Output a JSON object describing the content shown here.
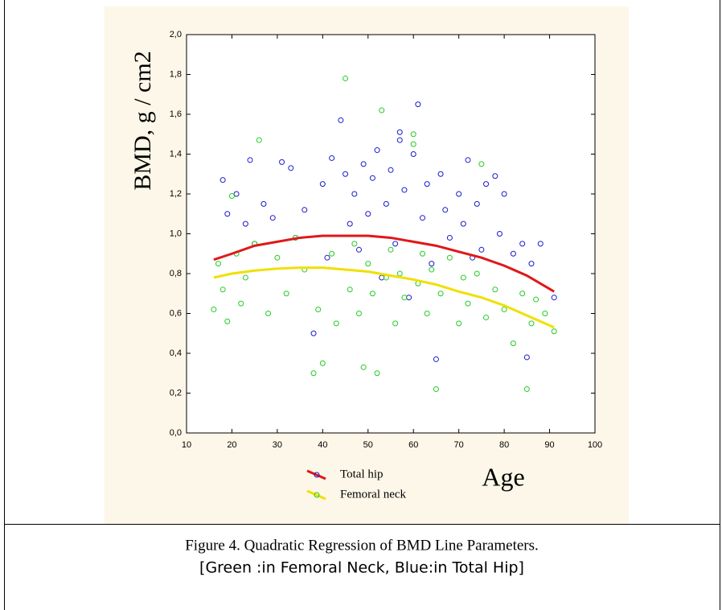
{
  "chart_data": {
    "type": "scatter",
    "xlabel": "Age",
    "ylabel": "BMD, g / cm2",
    "xlim": [
      10,
      100
    ],
    "ylim": [
      0,
      2.0
    ],
    "xticks": [
      10,
      20,
      30,
      40,
      50,
      60,
      70,
      80,
      90,
      100
    ],
    "yticks": [
      {
        "value": 0,
        "label": "0,0"
      },
      {
        "value": 0.2,
        "label": "0,2"
      },
      {
        "value": 0.4,
        "label": "0,4"
      },
      {
        "value": 0.6,
        "label": "0,6"
      },
      {
        "value": 0.8,
        "label": "0,8"
      },
      {
        "value": 1.0,
        "label": "1,0"
      },
      {
        "value": 1.2,
        "label": "1,2"
      },
      {
        "value": 1.4,
        "label": "1,4"
      },
      {
        "value": 1.6,
        "label": "1,6"
      },
      {
        "value": 1.8,
        "label": "1,8"
      },
      {
        "value": 2.0,
        "label": "2,0"
      }
    ],
    "grid": false,
    "series": [
      {
        "name": "Total hip",
        "color": "#1a1ac8",
        "x": [
          18,
          19,
          21,
          23,
          24,
          25,
          27,
          29,
          31,
          33,
          34,
          36,
          38,
          40,
          41,
          42,
          44,
          45,
          46,
          47,
          48,
          49,
          50,
          51,
          52,
          53,
          54,
          55,
          56,
          57,
          57,
          58,
          59,
          60,
          61,
          62,
          63,
          64,
          65,
          66,
          67,
          68,
          70,
          71,
          72,
          73,
          74,
          75,
          76,
          78,
          79,
          80,
          82,
          84,
          85,
          86,
          88,
          91
        ],
        "values": [
          1.27,
          1.1,
          1.2,
          1.05,
          1.37,
          0.95,
          1.15,
          1.08,
          1.36,
          1.33,
          0.98,
          1.12,
          0.5,
          1.25,
          0.88,
          1.38,
          1.57,
          1.3,
          1.05,
          1.2,
          0.92,
          1.35,
          1.1,
          1.28,
          1.42,
          0.78,
          1.15,
          1.32,
          0.95,
          1.51,
          1.47,
          1.22,
          0.68,
          1.4,
          1.65,
          1.08,
          1.25,
          0.85,
          0.37,
          1.3,
          1.12,
          0.98,
          1.2,
          1.05,
          1.37,
          0.88,
          1.15,
          0.92,
          1.25,
          1.29,
          1.0,
          1.2,
          0.9,
          0.95,
          0.38,
          0.85,
          0.95,
          0.68
        ],
        "fit": {
          "color": "#e01818",
          "x": [
            16,
            20,
            25,
            30,
            35,
            40,
            45,
            50,
            55,
            60,
            65,
            70,
            75,
            80,
            85,
            91
          ],
          "values": [
            0.87,
            0.9,
            0.94,
            0.96,
            0.98,
            0.99,
            0.99,
            0.99,
            0.98,
            0.96,
            0.94,
            0.91,
            0.88,
            0.84,
            0.79,
            0.71
          ]
        }
      },
      {
        "name": "Femoral neck",
        "color": "#22cc22",
        "x": [
          16,
          17,
          18,
          19,
          20,
          21,
          22,
          23,
          25,
          26,
          28,
          30,
          32,
          34,
          36,
          38,
          39,
          40,
          42,
          43,
          45,
          46,
          47,
          48,
          49,
          50,
          51,
          52,
          53,
          54,
          55,
          56,
          57,
          58,
          60,
          60,
          61,
          62,
          63,
          64,
          65,
          66,
          68,
          70,
          71,
          72,
          74,
          75,
          76,
          78,
          80,
          82,
          84,
          85,
          86,
          87,
          89,
          91
        ],
        "values": [
          0.62,
          0.85,
          0.72,
          0.56,
          1.19,
          0.9,
          0.65,
          0.78,
          0.95,
          1.47,
          0.6,
          0.88,
          0.7,
          0.98,
          0.82,
          0.3,
          0.62,
          0.35,
          0.9,
          0.55,
          1.78,
          0.72,
          0.95,
          0.6,
          0.33,
          0.85,
          0.7,
          0.3,
          1.62,
          0.78,
          0.92,
          0.55,
          0.8,
          0.68,
          1.5,
          1.45,
          0.75,
          0.9,
          0.6,
          0.82,
          0.22,
          0.7,
          0.88,
          0.55,
          0.78,
          0.65,
          0.8,
          1.35,
          0.58,
          0.72,
          0.62,
          0.45,
          0.7,
          0.22,
          0.55,
          0.67,
          0.6,
          0.51
        ],
        "fit": {
          "color": "#f0e000",
          "x": [
            16,
            20,
            25,
            30,
            35,
            40,
            45,
            50,
            55,
            60,
            65,
            70,
            75,
            80,
            85,
            91
          ],
          "values": [
            0.78,
            0.8,
            0.815,
            0.825,
            0.83,
            0.83,
            0.82,
            0.81,
            0.79,
            0.77,
            0.745,
            0.71,
            0.68,
            0.64,
            0.59,
            0.53
          ]
        }
      }
    ]
  },
  "caption": {
    "line1": "Figure 4. Quadratic Regression of BMD Line Parameters.",
    "line2": "[Green :in Femoral Neck, Blue:in Total Hip]"
  }
}
